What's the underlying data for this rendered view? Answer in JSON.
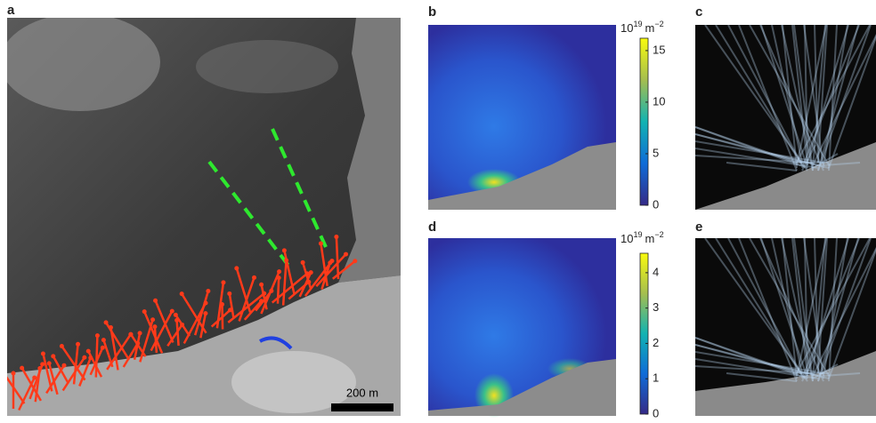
{
  "panels": [
    {
      "label": "a"
    },
    {
      "label": "b"
    },
    {
      "label": "c"
    },
    {
      "label": "d"
    },
    {
      "label": "e"
    }
  ],
  "scale_bar": "200 m",
  "colorbars": [
    {
      "unit": {
        "base": "10",
        "base_exponent": "19",
        "unit": "m",
        "unit_exponent": "−2"
      },
      "lim": [
        0,
        16.2
      ],
      "ticks": [
        0,
        5,
        10,
        15
      ]
    },
    {
      "unit": {
        "base": "10",
        "base_exponent": "19",
        "unit": "m",
        "unit_exponent": "−2"
      },
      "lim": [
        0,
        4.55
      ],
      "ticks": [
        0,
        1,
        2,
        3,
        4
      ]
    }
  ]
}
